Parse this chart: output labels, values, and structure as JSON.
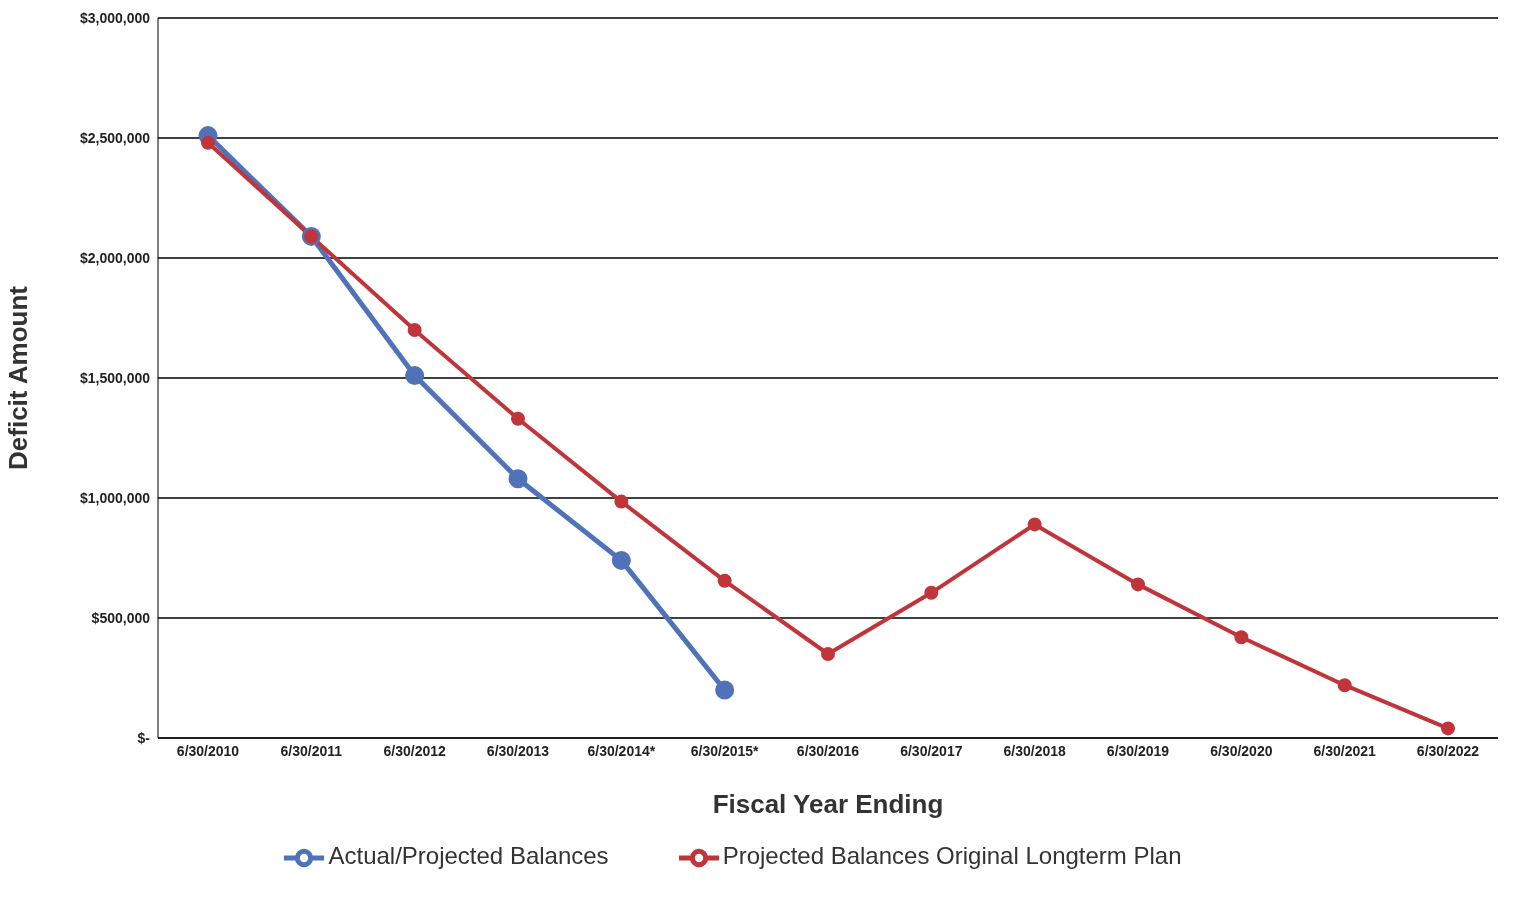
{
  "chart_data": {
    "type": "line",
    "xlabel": "Fiscal Year Ending",
    "ylabel": "Deficit Amount",
    "categories": [
      "6/30/2010",
      "6/30/2011",
      "6/30/2012",
      "6/30/2013",
      "6/30/2014*",
      "6/30/2015*",
      "6/30/2016",
      "6/30/2017",
      "6/30/2018",
      "6/30/2019",
      "6/30/2020",
      "6/30/2021",
      "6/30/2022"
    ],
    "series": [
      {
        "name": "Actual/Projected Balances",
        "color": "#4f72b8",
        "values": [
          2510000,
          2090000,
          1510000,
          1080000,
          740000,
          200000,
          null,
          null,
          null,
          null,
          null,
          null,
          null
        ]
      },
      {
        "name": "Projected Balances Original Longterm Plan",
        "color": "#c0353a",
        "values": [
          2480000,
          2090000,
          1700000,
          1330000,
          985000,
          655000,
          350000,
          605000,
          890000,
          640000,
          420000,
          220000,
          40000
        ]
      }
    ],
    "ylim": [
      0,
      3000000
    ],
    "yticks": [
      {
        "value": 0,
        "label": "$-"
      },
      {
        "value": 500000,
        "label": "$500,000"
      },
      {
        "value": 1000000,
        "label": "$1,000,000"
      },
      {
        "value": 1500000,
        "label": "$1,500,000"
      },
      {
        "value": 2000000,
        "label": "$2,000,000"
      },
      {
        "value": 2500000,
        "label": "$2,500,000"
      },
      {
        "value": 3000000,
        "label": "$3,000,000"
      }
    ],
    "grid": "y",
    "legend": "bottom",
    "marker": "circle",
    "line_style": "solid"
  }
}
